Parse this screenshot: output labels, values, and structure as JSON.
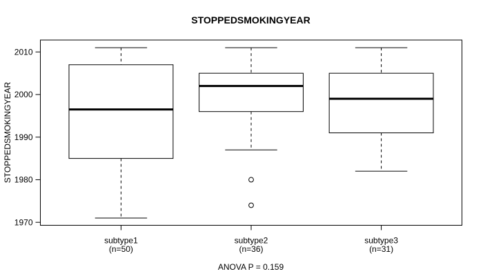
{
  "chart_data": {
    "type": "boxplot",
    "title": "STOPPEDSMOKINGYEAR",
    "ylabel": "STOPPEDSMOKINGYEAR",
    "xlabel": "",
    "annotation": "ANOVA P = 0.159",
    "yticks": [
      1970,
      1980,
      1990,
      2000,
      2010
    ],
    "ylim": [
      1969.3,
      2012.8
    ],
    "grid": false,
    "legend": "none",
    "line_color": "#000000",
    "background_color": "#ffffff",
    "groups": [
      {
        "label": "subtype1",
        "sublabel": "(n=50)",
        "n": 50,
        "whisker_low": 1971,
        "q1": 1985,
        "median": 1996.5,
        "q3": 2007,
        "whisker_high": 2011,
        "outliers": []
      },
      {
        "label": "subtype2",
        "sublabel": "(n=36)",
        "n": 36,
        "whisker_low": 1987,
        "q1": 1996,
        "median": 2002,
        "q3": 2005,
        "whisker_high": 2011,
        "outliers": [
          1980,
          1974
        ]
      },
      {
        "label": "subtype3",
        "sublabel": "(n=31)",
        "n": 31,
        "whisker_low": 1982,
        "q1": 1991,
        "median": 1999,
        "q3": 2005,
        "whisker_high": 2011,
        "outliers": []
      }
    ]
  }
}
